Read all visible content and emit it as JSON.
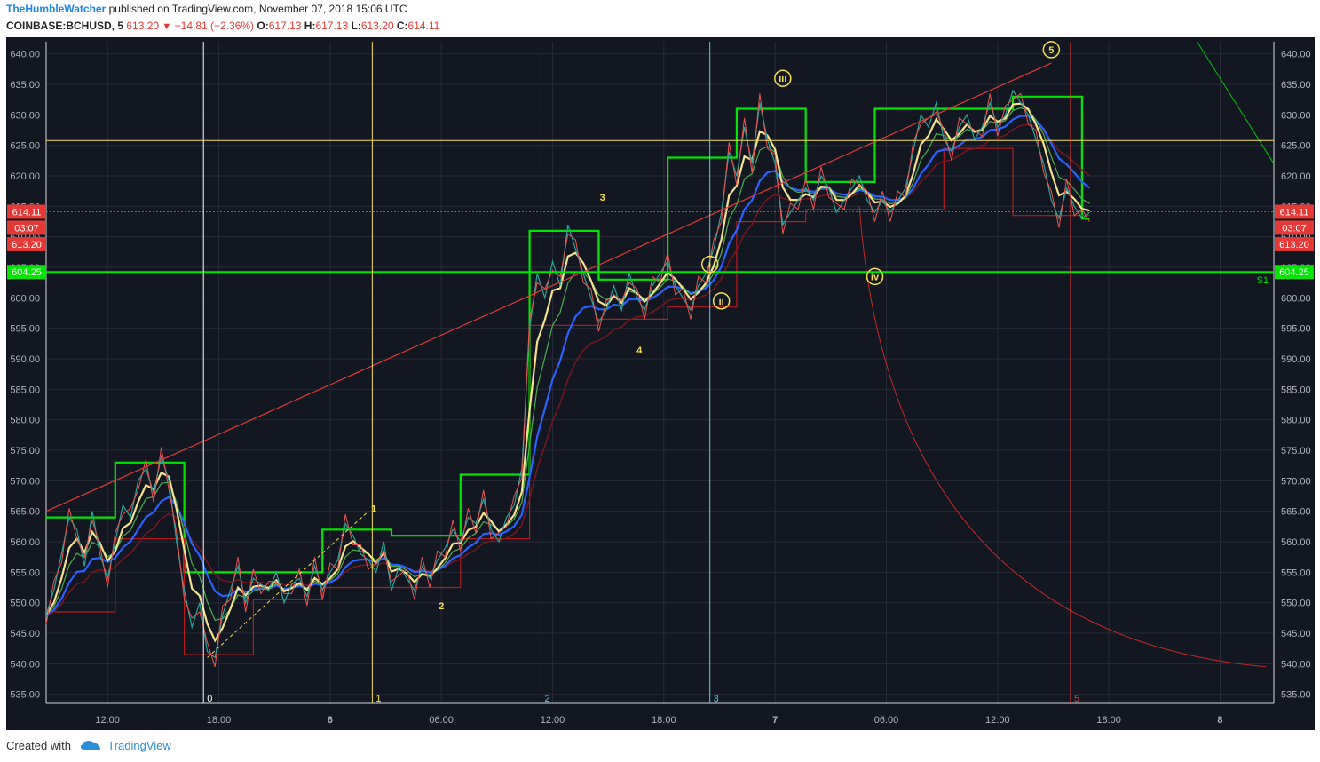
{
  "header": {
    "author": "TheHumbleWatcher",
    "published_text": "published on TradingView.com, November 07, 2018 15:06 UTC",
    "symbol": "COINBASE:BCHUSD, 5",
    "last": "613.20",
    "change": "−14.81 (−2.36%)",
    "o_label": "O:",
    "o_val": "617.13",
    "h_label": "H:",
    "h_val": "617.13",
    "l_label": "L:",
    "l_val": "613.20",
    "c_label": "C:",
    "c_val": "614.11"
  },
  "footer": {
    "created_with": "Created with",
    "brand": "TradingView"
  },
  "chart_data": {
    "type": "line",
    "y_ticks": [
      "640.00",
      "635.00",
      "630.00",
      "625.00",
      "620.00",
      "615.00",
      "610.00",
      "605.00",
      "600.00",
      "595.00",
      "590.00",
      "585.00",
      "580.00",
      "575.00",
      "570.00",
      "565.00",
      "560.00",
      "555.00",
      "550.00",
      "545.00",
      "540.00",
      "535.00"
    ],
    "ylim": [
      533.5,
      642
    ],
    "xlim": [
      0,
      160
    ],
    "x_ticks": [
      {
        "x": 8,
        "label": "12:00",
        "bold": false
      },
      {
        "x": 22.5,
        "label": "18:00",
        "bold": false
      },
      {
        "x": 37,
        "label": "6",
        "bold": true
      },
      {
        "x": 51.5,
        "label": "06:00",
        "bold": false
      },
      {
        "x": 66,
        "label": "12:00",
        "bold": false
      },
      {
        "x": 80.5,
        "label": "18:00",
        "bold": false
      },
      {
        "x": 95,
        "label": "7",
        "bold": true
      },
      {
        "x": 109.5,
        "label": "06:00",
        "bold": false
      },
      {
        "x": 124,
        "label": "12:00",
        "bold": false
      },
      {
        "x": 138.5,
        "label": "18:00",
        "bold": false
      },
      {
        "x": 153,
        "label": "8",
        "bold": true
      }
    ],
    "price_series": {
      "name": "BCHUSD",
      "x": [
        0,
        1,
        2,
        3,
        4,
        5,
        6,
        7,
        8,
        9,
        10,
        11,
        12,
        13,
        14,
        15,
        16,
        17,
        18,
        19,
        20,
        21,
        22,
        23,
        24,
        25,
        26,
        27,
        28,
        29,
        30,
        31,
        32,
        33,
        34,
        35,
        36,
        37,
        38,
        39,
        40,
        41,
        42,
        43,
        44,
        45,
        46,
        47,
        48,
        49,
        50,
        51,
        52,
        53,
        54,
        55,
        56,
        57,
        58,
        59,
        60,
        61,
        62,
        63,
        64,
        65,
        66,
        67,
        68,
        69,
        70,
        71,
        72,
        73,
        74,
        75,
        76,
        77,
        78,
        79,
        80,
        81,
        82,
        83,
        84,
        85,
        86,
        87,
        88,
        89,
        90,
        91,
        92,
        93,
        94,
        95,
        96,
        97,
        98,
        99,
        100,
        101,
        102,
        103,
        104,
        105,
        106,
        107,
        108,
        109,
        110,
        111,
        112,
        113,
        114,
        115,
        116,
        117,
        118,
        119,
        120,
        121,
        122,
        123,
        124,
        125,
        126,
        127,
        128,
        129,
        130,
        131,
        132,
        133,
        134,
        135,
        136
      ],
      "y": [
        548,
        552,
        558,
        564,
        562,
        556,
        565,
        558,
        554,
        560,
        566,
        564,
        570,
        572,
        568,
        574,
        570,
        560,
        552,
        546,
        550,
        542,
        541,
        548,
        552,
        556,
        550,
        554,
        553,
        552,
        555,
        550,
        553,
        554,
        551,
        556,
        552,
        555,
        557,
        563,
        561,
        558,
        557,
        555,
        560,
        552,
        556,
        554,
        552,
        556,
        554,
        557,
        559,
        562,
        560,
        564,
        563,
        567,
        562,
        560,
        564,
        566,
        572,
        595,
        604,
        600,
        606,
        602,
        612,
        608,
        604,
        600,
        596,
        598,
        602,
        598,
        604,
        600,
        598,
        602,
        604,
        606,
        602,
        600,
        598,
        602,
        604,
        608,
        614,
        624,
        620,
        628,
        622,
        632,
        626,
        622,
        612,
        614,
        616,
        618,
        616,
        620,
        618,
        614,
        616,
        618,
        620,
        616,
        614,
        616,
        614,
        616,
        618,
        624,
        630,
        628,
        632,
        626,
        624,
        628,
        630,
        626,
        628,
        632,
        628,
        630,
        634,
        632,
        630,
        626,
        622,
        616,
        613,
        618,
        615,
        613,
        614
      ]
    },
    "series": [
      {
        "name": "EMA fast",
        "color": "#f5e38c"
      },
      {
        "name": "EMA slow",
        "color": "#2962ff"
      },
      {
        "name": "MA dark red",
        "color": "#7a1620"
      },
      {
        "name": "Step green",
        "color": "#00e600"
      },
      {
        "name": "Step red",
        "color": "#b71c1c"
      }
    ],
    "vlines": [
      {
        "x": 20.5,
        "color": "#ffffff",
        "label": "0"
      },
      {
        "x": 42.5,
        "color": "#f5e04c",
        "label": "1"
      },
      {
        "x": 64.5,
        "color": "#4dd0e1",
        "label": "2"
      },
      {
        "x": 86.5,
        "color": "#4dd0e1",
        "label": "3"
      },
      {
        "x": 133.5,
        "color": "#e53935",
        "label": "5"
      }
    ],
    "hlines": [
      {
        "y": 625.8,
        "color": "#f5e04c"
      },
      {
        "y": 604.25,
        "color": "#00e600",
        "label": "S1"
      }
    ],
    "price_labels": [
      {
        "text": "614.11",
        "y": 614.11,
        "bg": "#e53935"
      },
      {
        "text": "03:07",
        "y": 611.5,
        "bg": "#e53935"
      },
      {
        "text": "613.20",
        "y": 608.8,
        "bg": "#e53935"
      },
      {
        "text": "604.25",
        "y": 604.25,
        "bg": "#00e600"
      }
    ],
    "wave_labels": [
      {
        "text": "1",
        "x": 42.7,
        "y": 565.5,
        "circled": false
      },
      {
        "text": "2",
        "x": 51.5,
        "y": 549.5,
        "circled": false
      },
      {
        "text": "3",
        "x": 72.5,
        "y": 616.5,
        "circled": false
      },
      {
        "text": "4",
        "x": 77.3,
        "y": 591.5,
        "circled": false
      },
      {
        "text": "i",
        "x": 86.5,
        "y": 605.5,
        "circled": true
      },
      {
        "text": "ii",
        "x": 88.0,
        "y": 599.5,
        "circled": true
      },
      {
        "text": "iii",
        "x": 96.0,
        "y": 636.0,
        "circled": true
      },
      {
        "text": "iv",
        "x": 108.0,
        "y": 603.5,
        "circled": true
      },
      {
        "text": "5",
        "x": 131.0,
        "y": 640.7,
        "circled": true
      }
    ]
  }
}
